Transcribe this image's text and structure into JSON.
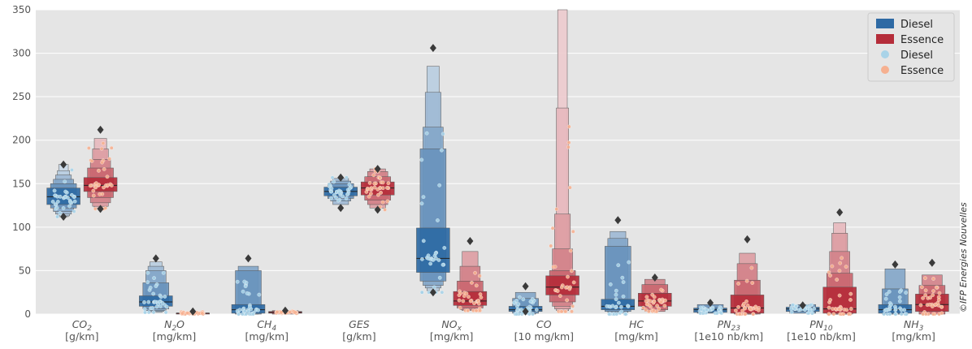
{
  "chart_data": {
    "type": "boxen",
    "ylim": [
      0,
      350
    ],
    "yticks": [
      0,
      50,
      100,
      150,
      200,
      250,
      300,
      350
    ],
    "grid": true,
    "legend_position": "top-right",
    "legend": [
      {
        "label": "Diesel",
        "kind": "box",
        "color": "#2e6aa4"
      },
      {
        "label": "Essence",
        "kind": "box",
        "color": "#b52d3a"
      },
      {
        "label": "Diesel",
        "kind": "point",
        "color": "#a9d3e8"
      },
      {
        "label": "Essence",
        "kind": "point",
        "color": "#f6b090"
      }
    ],
    "colors": {
      "diesel": "#2e6aa4",
      "essence": "#b52d3a",
      "diesel_points": "#a9d3e8",
      "essence_points": "#f6b090"
    },
    "credit": "©IFP Energies Nouvelles",
    "categories": [
      {
        "name": "CO",
        "sub": "2",
        "unit": "[g/km]",
        "italic": true
      },
      {
        "name": "N",
        "sub": "2",
        "name_after": "O",
        "unit": "[mg/km]",
        "italic": true
      },
      {
        "name": "CH",
        "sub": "4",
        "unit": "[mg/km]",
        "italic": true
      },
      {
        "name": "GES",
        "sub": "",
        "unit": "[g/km]",
        "italic": true
      },
      {
        "name": "NO",
        "sub": "x",
        "unit": "[mg/km]",
        "italic": true
      },
      {
        "name": "CO",
        "sub": "",
        "unit": "[10 mg/km]",
        "italic": true
      },
      {
        "name": "HC",
        "sub": "",
        "unit": "[mg/km]",
        "italic": true
      },
      {
        "name": "PN",
        "sub": "23",
        "unit": "[1e10 nb/km]",
        "italic": true
      },
      {
        "name": "PN",
        "sub": "10",
        "unit": "[1e10 nb/km]",
        "italic": true
      },
      {
        "name": "NH",
        "sub": "3",
        "unit": "[mg/km]",
        "italic": true
      }
    ],
    "series": [
      {
        "name": "Diesel",
        "data": [
          {
            "median": 135,
            "levels": [
              [
                126,
                145
              ],
              [
                122,
                150
              ],
              [
                118,
                155
              ],
              [
                115,
                160
              ],
              [
                113,
                165
              ],
              [
                112,
                172
              ]
            ],
            "outliers": [
              172,
              112
            ],
            "range": [
              112,
              172
            ]
          },
          {
            "median": 14,
            "levels": [
              [
                9,
                21
              ],
              [
                6,
                36
              ],
              [
                4,
                50
              ],
              [
                3,
                55
              ],
              [
                2,
                60
              ]
            ],
            "outliers": [
              64
            ],
            "range": [
              2,
              64
            ]
          },
          {
            "median": 5,
            "levels": [
              [
                1,
                11
              ],
              [
                0,
                50
              ],
              [
                0,
                55
              ]
            ],
            "outliers": [
              64
            ],
            "range": [
              0,
              64
            ]
          },
          {
            "median": 141,
            "levels": [
              [
                136,
                146
              ],
              [
                133,
                150
              ],
              [
                130,
                153
              ],
              [
                126,
                156
              ]
            ],
            "outliers": [
              157,
              122
            ],
            "range": [
              122,
              157
            ]
          },
          {
            "median": 64,
            "levels": [
              [
                48,
                99
              ],
              [
                38,
                190
              ],
              [
                33,
                215
              ],
              [
                30,
                255
              ],
              [
                27,
                285
              ]
            ],
            "outliers": [
              306,
              25
            ],
            "range": [
              25,
              306
            ]
          },
          {
            "median": 5,
            "levels": [
              [
                3,
                9
              ],
              [
                1,
                18
              ],
              [
                0,
                25
              ]
            ],
            "outliers": [
              32,
              3
            ],
            "range": [
              0,
              32
            ]
          },
          {
            "median": 9,
            "levels": [
              [
                5,
                17
              ],
              [
                3,
                78
              ],
              [
                2,
                87
              ],
              [
                1,
                95
              ]
            ],
            "outliers": [
              108
            ],
            "range": [
              0,
              108
            ]
          },
          {
            "median": 5,
            "levels": [
              [
                2,
                7
              ],
              [
                1,
                11
              ]
            ],
            "outliers": [
              13
            ],
            "range": [
              1,
              13
            ]
          },
          {
            "median": 6,
            "levels": [
              [
                3,
                8
              ],
              [
                1,
                11
              ]
            ],
            "outliers": [
              10
            ],
            "range": [
              1,
              11
            ]
          },
          {
            "median": 5,
            "levels": [
              [
                1,
                11
              ],
              [
                0,
                29
              ],
              [
                0,
                52
              ]
            ],
            "outliers": [
              57
            ],
            "range": [
              0,
              57
            ]
          }
        ]
      },
      {
        "name": "Essence",
        "data": [
          {
            "median": 148,
            "levels": [
              [
                141,
                157
              ],
              [
                134,
                168
              ],
              [
                128,
                178
              ],
              [
                124,
                190
              ],
              [
                122,
                202
              ]
            ],
            "outliers": [
              212,
              121
            ],
            "range": [
              121,
              212
            ]
          },
          {
            "median": 1,
            "levels": [
              [
                0,
                1
              ]
            ],
            "outliers": [
              3
            ],
            "range": [
              0,
              3
            ]
          },
          {
            "median": 2,
            "levels": [
              [
                1,
                3
              ],
              [
                0,
                4
              ]
            ],
            "outliers": [
              4
            ],
            "range": [
              0,
              4
            ]
          },
          {
            "median": 145,
            "levels": [
              [
                137,
                152
              ],
              [
                131,
                158
              ],
              [
                126,
                164
              ],
              [
                122,
                167
              ]
            ],
            "outliers": [
              167,
              120
            ],
            "range": [
              120,
              167
            ]
          },
          {
            "median": 15,
            "levels": [
              [
                10,
                26
              ],
              [
                7,
                38
              ],
              [
                5,
                55
              ],
              [
                4,
                72
              ]
            ],
            "outliers": [
              84
            ],
            "range": [
              4,
              84
            ]
          },
          {
            "median": 31,
            "levels": [
              [
                22,
                44
              ],
              [
                14,
                50
              ],
              [
                9,
                75
              ],
              [
                6,
                115
              ],
              [
                4,
                237
              ],
              [
                3,
                350
              ]
            ],
            "outliers": [],
            "range": [
              3,
              350
            ]
          },
          {
            "median": 15,
            "levels": [
              [
                9,
                24
              ],
              [
                5,
                34
              ],
              [
                3,
                40
              ]
            ],
            "outliers": [
              42
            ],
            "range": [
              3,
              42
            ]
          },
          {
            "median": 7,
            "levels": [
              [
                1,
                22
              ],
              [
                0,
                39
              ],
              [
                0,
                58
              ],
              [
                0,
                70
              ]
            ],
            "outliers": [
              86
            ],
            "range": [
              0,
              86
            ]
          },
          {
            "median": 6,
            "levels": [
              [
                1,
                31
              ],
              [
                0,
                47
              ],
              [
                0,
                72
              ],
              [
                0,
                93
              ],
              [
                0,
                105
              ]
            ],
            "outliers": [
              117
            ],
            "range": [
              0,
              117
            ]
          },
          {
            "median": 11,
            "levels": [
              [
                3,
                23
              ],
              [
                0,
                33
              ],
              [
                0,
                45
              ]
            ],
            "outliers": [
              59
            ],
            "range": [
              0,
              59
            ]
          }
        ]
      }
    ]
  }
}
